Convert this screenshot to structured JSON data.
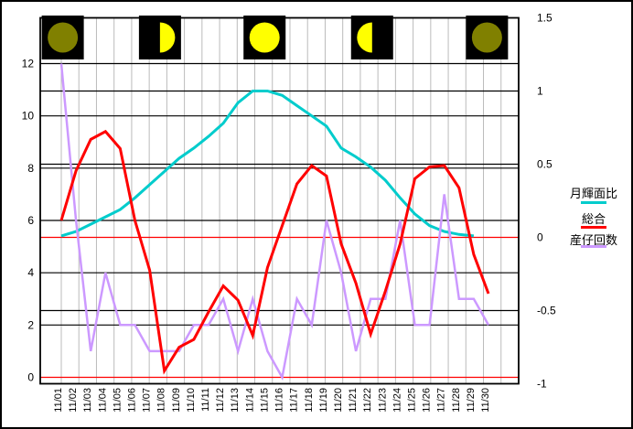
{
  "colors": {
    "cyan": "#00CCCC",
    "red": "#FF0000",
    "violet": "#CC99FF",
    "grid_gray": "#BBBBBB",
    "axis_black": "#000000",
    "zero_line_red": "#FF0000",
    "moon_lit": "#FFFF00",
    "moon_dark": "#808000",
    "moon_bg": "#000000",
    "background": "#FFFFFF"
  },
  "legend": {
    "items": [
      {
        "label": "月輝面比",
        "color": "#00CCCC"
      },
      {
        "label": "総合",
        "color": "#FF0000"
      },
      {
        "label": "産仔回数",
        "color": "#CC99FF"
      }
    ]
  },
  "chart_data": {
    "type": "line",
    "title": "",
    "categories": [
      "11/01",
      "11/02",
      "11/03",
      "11/04",
      "11/05",
      "11/06",
      "11/07",
      "11/08",
      "11/09",
      "11/10",
      "11/11",
      "11/12",
      "11/13",
      "11/14",
      "11/15",
      "11/16",
      "11/17",
      "11/18",
      "11/19",
      "11/20",
      "11/21",
      "11/22",
      "11/23",
      "11/24",
      "11/25",
      "11/26",
      "11/27",
      "11/28",
      "11/29",
      "11/30"
    ],
    "series": [
      {
        "name": "月輝面比",
        "axis": "right",
        "color": "#00CCCC",
        "width": 3,
        "values": [
          0.01,
          0.04,
          0.09,
          0.14,
          0.19,
          0.27,
          0.36,
          0.45,
          0.54,
          0.61,
          0.69,
          0.78,
          0.92,
          1.0,
          1.0,
          0.97,
          0.9,
          0.83,
          0.76,
          0.61,
          0.55,
          0.48,
          0.39,
          0.27,
          0.16,
          0.08,
          0.04,
          0.02,
          0.01,
          null
        ]
      },
      {
        "name": "総合",
        "axis": "left",
        "color": "#FF0000",
        "width": 3,
        "values": [
          6.0,
          7.9,
          9.1,
          9.4,
          8.75,
          6.0,
          4.1,
          0.25,
          1.15,
          1.45,
          2.5,
          3.5,
          2.95,
          1.6,
          4.2,
          5.8,
          7.4,
          8.1,
          7.7,
          5.1,
          3.6,
          1.65,
          3.3,
          5.1,
          7.6,
          8.05,
          8.1,
          7.25,
          4.7,
          3.2
        ]
      },
      {
        "name": "産仔回数",
        "axis": "left",
        "color": "#CC99FF",
        "width": 2.5,
        "values": [
          12,
          6,
          1,
          4,
          2,
          2,
          1,
          1,
          1,
          2,
          2,
          3,
          1,
          3,
          1,
          0,
          3,
          2,
          6,
          4,
          1,
          3,
          3,
          6,
          2,
          2,
          7,
          3,
          3,
          2
        ]
      }
    ],
    "left_axis": {
      "min": 0,
      "max": 12,
      "tick_labels": [
        "0",
        "2",
        "4",
        "6",
        "8",
        "10",
        "12"
      ],
      "tick_values": [
        0,
        2,
        4,
        6,
        8,
        10,
        12
      ],
      "gridlines": [
        2,
        4,
        6,
        8,
        10,
        12
      ],
      "zero_line": 0
    },
    "right_axis": {
      "min": -1,
      "max": 1.5,
      "tick_labels": [
        "-1",
        "-0.5",
        "0",
        "0.5",
        "1",
        "1.5"
      ],
      "tick_values": [
        -1,
        -0.5,
        0,
        0.5,
        1,
        1.5
      ],
      "gridlines": [
        -0.5,
        0.5,
        1
      ],
      "zero_line": 0
    },
    "moon_phases": [
      {
        "phase": "new",
        "day": 1.1
      },
      {
        "phase": "first-quarter",
        "day": 7.7
      },
      {
        "phase": "full",
        "day": 14.8
      },
      {
        "phase": "last-quarter",
        "day": 22.1
      },
      {
        "phase": "new",
        "day": 29.9
      }
    ],
    "grid_on": true,
    "legend_position": "right"
  }
}
